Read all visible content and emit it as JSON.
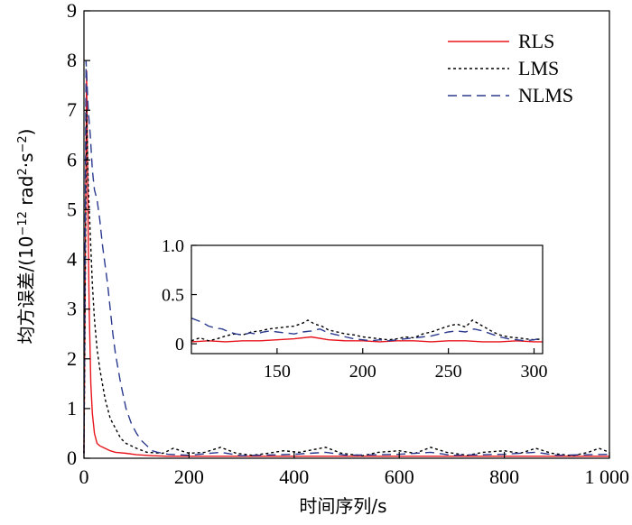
{
  "chart_data": {
    "type": "line",
    "title": "",
    "xlabel": "时间序列/s",
    "ylabel_main": "均方误差/(10",
    "ylabel_exp1": "−12",
    "ylabel_unit": " rad",
    "ylabel_exp2": "2",
    "ylabel_dot": "·s",
    "ylabel_exp3": "−2",
    "ylabel_close": ")",
    "xlim": [
      0,
      1000
    ],
    "ylim": [
      0,
      9
    ],
    "xticks": [
      0,
      200,
      400,
      600,
      800,
      1000
    ],
    "xtick_labels": [
      "0",
      "200",
      "400",
      "600",
      "800",
      "1 000"
    ],
    "yticks": [
      0,
      1,
      2,
      3,
      4,
      5,
      6,
      7,
      8,
      9
    ],
    "ytick_labels": [
      "0",
      "1",
      "2",
      "3",
      "4",
      "5",
      "6",
      "7",
      "8",
      "9"
    ],
    "legend_position": "top-right",
    "series": [
      {
        "name": "RLS",
        "color": "#e8141b",
        "dash": "solid",
        "points": [
          [
            0,
            0.1
          ],
          [
            5,
            7.8
          ],
          [
            8,
            4.5
          ],
          [
            10,
            3.0
          ],
          [
            13,
            1.5
          ],
          [
            16,
            0.9
          ],
          [
            20,
            0.5
          ],
          [
            25,
            0.3
          ],
          [
            30,
            0.25
          ],
          [
            40,
            0.2
          ],
          [
            50,
            0.15
          ],
          [
            60,
            0.12
          ],
          [
            80,
            0.1
          ],
          [
            100,
            0.07
          ],
          [
            130,
            0.05
          ],
          [
            160,
            0.04
          ],
          [
            200,
            0.04
          ],
          [
            260,
            0.04
          ],
          [
            300,
            0.04
          ],
          [
            400,
            0.04
          ],
          [
            500,
            0.04
          ],
          [
            600,
            0.04
          ],
          [
            700,
            0.04
          ],
          [
            800,
            0.04
          ],
          [
            900,
            0.04
          ],
          [
            1000,
            0.04
          ]
        ]
      },
      {
        "name": "LMS",
        "color": "#000000",
        "dash": "dotted",
        "points": [
          [
            0,
            0.1
          ],
          [
            5,
            7.0
          ],
          [
            8,
            5.5
          ],
          [
            12,
            4.5
          ],
          [
            16,
            3.5
          ],
          [
            20,
            2.8
          ],
          [
            25,
            2.2
          ],
          [
            30,
            1.8
          ],
          [
            35,
            1.5
          ],
          [
            40,
            1.2
          ],
          [
            50,
            0.8
          ],
          [
            60,
            0.6
          ],
          [
            70,
            0.4
          ],
          [
            80,
            0.3
          ],
          [
            100,
            0.2
          ],
          [
            120,
            0.12
          ],
          [
            150,
            0.1
          ],
          [
            170,
            0.2
          ],
          [
            200,
            0.1
          ],
          [
            230,
            0.12
          ],
          [
            260,
            0.22
          ],
          [
            290,
            0.1
          ],
          [
            320,
            0.06
          ],
          [
            350,
            0.1
          ],
          [
            380,
            0.15
          ],
          [
            410,
            0.12
          ],
          [
            460,
            0.22
          ],
          [
            490,
            0.1
          ],
          [
            530,
            0.05
          ],
          [
            560,
            0.12
          ],
          [
            600,
            0.15
          ],
          [
            630,
            0.1
          ],
          [
            660,
            0.22
          ],
          [
            690,
            0.12
          ],
          [
            730,
            0.06
          ],
          [
            760,
            0.12
          ],
          [
            800,
            0.15
          ],
          [
            830,
            0.1
          ],
          [
            860,
            0.2
          ],
          [
            890,
            0.1
          ],
          [
            930,
            0.05
          ],
          [
            960,
            0.12
          ],
          [
            980,
            0.2
          ],
          [
            1000,
            0.12
          ]
        ]
      },
      {
        "name": "NLMS",
        "color": "#2b3a8f",
        "dash": "dashed",
        "points": [
          [
            0,
            0.1
          ],
          [
            4,
            8.0
          ],
          [
            8,
            7.0
          ],
          [
            12,
            6.5
          ],
          [
            16,
            5.8
          ],
          [
            20,
            5.4
          ],
          [
            25,
            5.2
          ],
          [
            30,
            4.8
          ],
          [
            35,
            4.3
          ],
          [
            40,
            3.9
          ],
          [
            45,
            3.5
          ],
          [
            50,
            3.0
          ],
          [
            55,
            2.5
          ],
          [
            60,
            2.1
          ],
          [
            70,
            1.5
          ],
          [
            80,
            1.0
          ],
          [
            90,
            0.7
          ],
          [
            100,
            0.5
          ],
          [
            110,
            0.35
          ],
          [
            120,
            0.25
          ],
          [
            130,
            0.15
          ],
          [
            140,
            0.12
          ],
          [
            160,
            0.08
          ],
          [
            200,
            0.06
          ],
          [
            260,
            0.12
          ],
          [
            300,
            0.05
          ],
          [
            400,
            0.08
          ],
          [
            460,
            0.12
          ],
          [
            500,
            0.06
          ],
          [
            600,
            0.08
          ],
          [
            660,
            0.12
          ],
          [
            700,
            0.06
          ],
          [
            800,
            0.08
          ],
          [
            860,
            0.12
          ],
          [
            900,
            0.06
          ],
          [
            1000,
            0.08
          ]
        ]
      }
    ],
    "inset": {
      "xlim": [
        100,
        305
      ],
      "ylim": [
        -0.1,
        1.0
      ],
      "xticks": [
        150,
        200,
        250,
        300
      ],
      "xtick_labels": [
        "150",
        "200",
        "250",
        "300"
      ],
      "yticks": [
        0,
        0.5,
        1.0
      ],
      "ytick_labels": [
        "0",
        "0.5",
        "1.0"
      ],
      "series": [
        {
          "name": "RLS",
          "points": [
            [
              100,
              0.02
            ],
            [
              110,
              0.03
            ],
            [
              120,
              0.02
            ],
            [
              130,
              0.03
            ],
            [
              140,
              0.03
            ],
            [
              150,
              0.04
            ],
            [
              160,
              0.05
            ],
            [
              170,
              0.07
            ],
            [
              180,
              0.04
            ],
            [
              190,
              0.03
            ],
            [
              200,
              0.03
            ],
            [
              210,
              0.02
            ],
            [
              220,
              0.03
            ],
            [
              230,
              0.03
            ],
            [
              240,
              0.02
            ],
            [
              250,
              0.03
            ],
            [
              260,
              0.03
            ],
            [
              270,
              0.02
            ],
            [
              280,
              0.02
            ],
            [
              290,
              0.03
            ],
            [
              300,
              0.02
            ],
            [
              305,
              0.02
            ]
          ]
        },
        {
          "name": "LMS",
          "points": [
            [
              100,
              0.03
            ],
            [
              105,
              0.06
            ],
            [
              110,
              0.03
            ],
            [
              115,
              0.05
            ],
            [
              120,
              0.08
            ],
            [
              125,
              0.1
            ],
            [
              130,
              0.09
            ],
            [
              135,
              0.12
            ],
            [
              140,
              0.13
            ],
            [
              145,
              0.15
            ],
            [
              150,
              0.16
            ],
            [
              155,
              0.17
            ],
            [
              160,
              0.18
            ],
            [
              165,
              0.21
            ],
            [
              168,
              0.24
            ],
            [
              172,
              0.2
            ],
            [
              176,
              0.18
            ],
            [
              180,
              0.14
            ],
            [
              185,
              0.12
            ],
            [
              190,
              0.1
            ],
            [
              195,
              0.09
            ],
            [
              200,
              0.07
            ],
            [
              205,
              0.06
            ],
            [
              210,
              0.05
            ],
            [
              215,
              0.04
            ],
            [
              220,
              0.05
            ],
            [
              225,
              0.07
            ],
            [
              230,
              0.06
            ],
            [
              235,
              0.1
            ],
            [
              240,
              0.12
            ],
            [
              245,
              0.15
            ],
            [
              250,
              0.18
            ],
            [
              255,
              0.2
            ],
            [
              260,
              0.17
            ],
            [
              264,
              0.24
            ],
            [
              268,
              0.2
            ],
            [
              272,
              0.16
            ],
            [
              276,
              0.12
            ],
            [
              280,
              0.09
            ],
            [
              285,
              0.07
            ],
            [
              290,
              0.06
            ],
            [
              295,
              0.05
            ],
            [
              300,
              0.04
            ],
            [
              305,
              0.05
            ]
          ]
        },
        {
          "name": "NLMS",
          "points": [
            [
              100,
              0.26
            ],
            [
              103,
              0.24
            ],
            [
              106,
              0.22
            ],
            [
              110,
              0.18
            ],
            [
              114,
              0.16
            ],
            [
              118,
              0.15
            ],
            [
              122,
              0.12
            ],
            [
              126,
              0.1
            ],
            [
              130,
              0.09
            ],
            [
              134,
              0.11
            ],
            [
              138,
              0.1
            ],
            [
              142,
              0.12
            ],
            [
              146,
              0.13
            ],
            [
              150,
              0.12
            ],
            [
              155,
              0.11
            ],
            [
              160,
              0.1
            ],
            [
              165,
              0.12
            ],
            [
              170,
              0.13
            ],
            [
              175,
              0.15
            ],
            [
              180,
              0.11
            ],
            [
              185,
              0.09
            ],
            [
              190,
              0.07
            ],
            [
              195,
              0.05
            ],
            [
              200,
              0.04
            ],
            [
              205,
              0.03
            ],
            [
              210,
              0.04
            ],
            [
              215,
              0.03
            ],
            [
              220,
              0.04
            ],
            [
              225,
              0.05
            ],
            [
              230,
              0.06
            ],
            [
              235,
              0.07
            ],
            [
              240,
              0.08
            ],
            [
              245,
              0.1
            ],
            [
              250,
              0.12
            ],
            [
              255,
              0.13
            ],
            [
              260,
              0.12
            ],
            [
              265,
              0.15
            ],
            [
              270,
              0.13
            ],
            [
              275,
              0.1
            ],
            [
              280,
              0.07
            ],
            [
              285,
              0.05
            ],
            [
              290,
              0.04
            ],
            [
              295,
              0.03
            ],
            [
              300,
              0.04
            ],
            [
              305,
              0.06
            ]
          ]
        }
      ]
    }
  }
}
